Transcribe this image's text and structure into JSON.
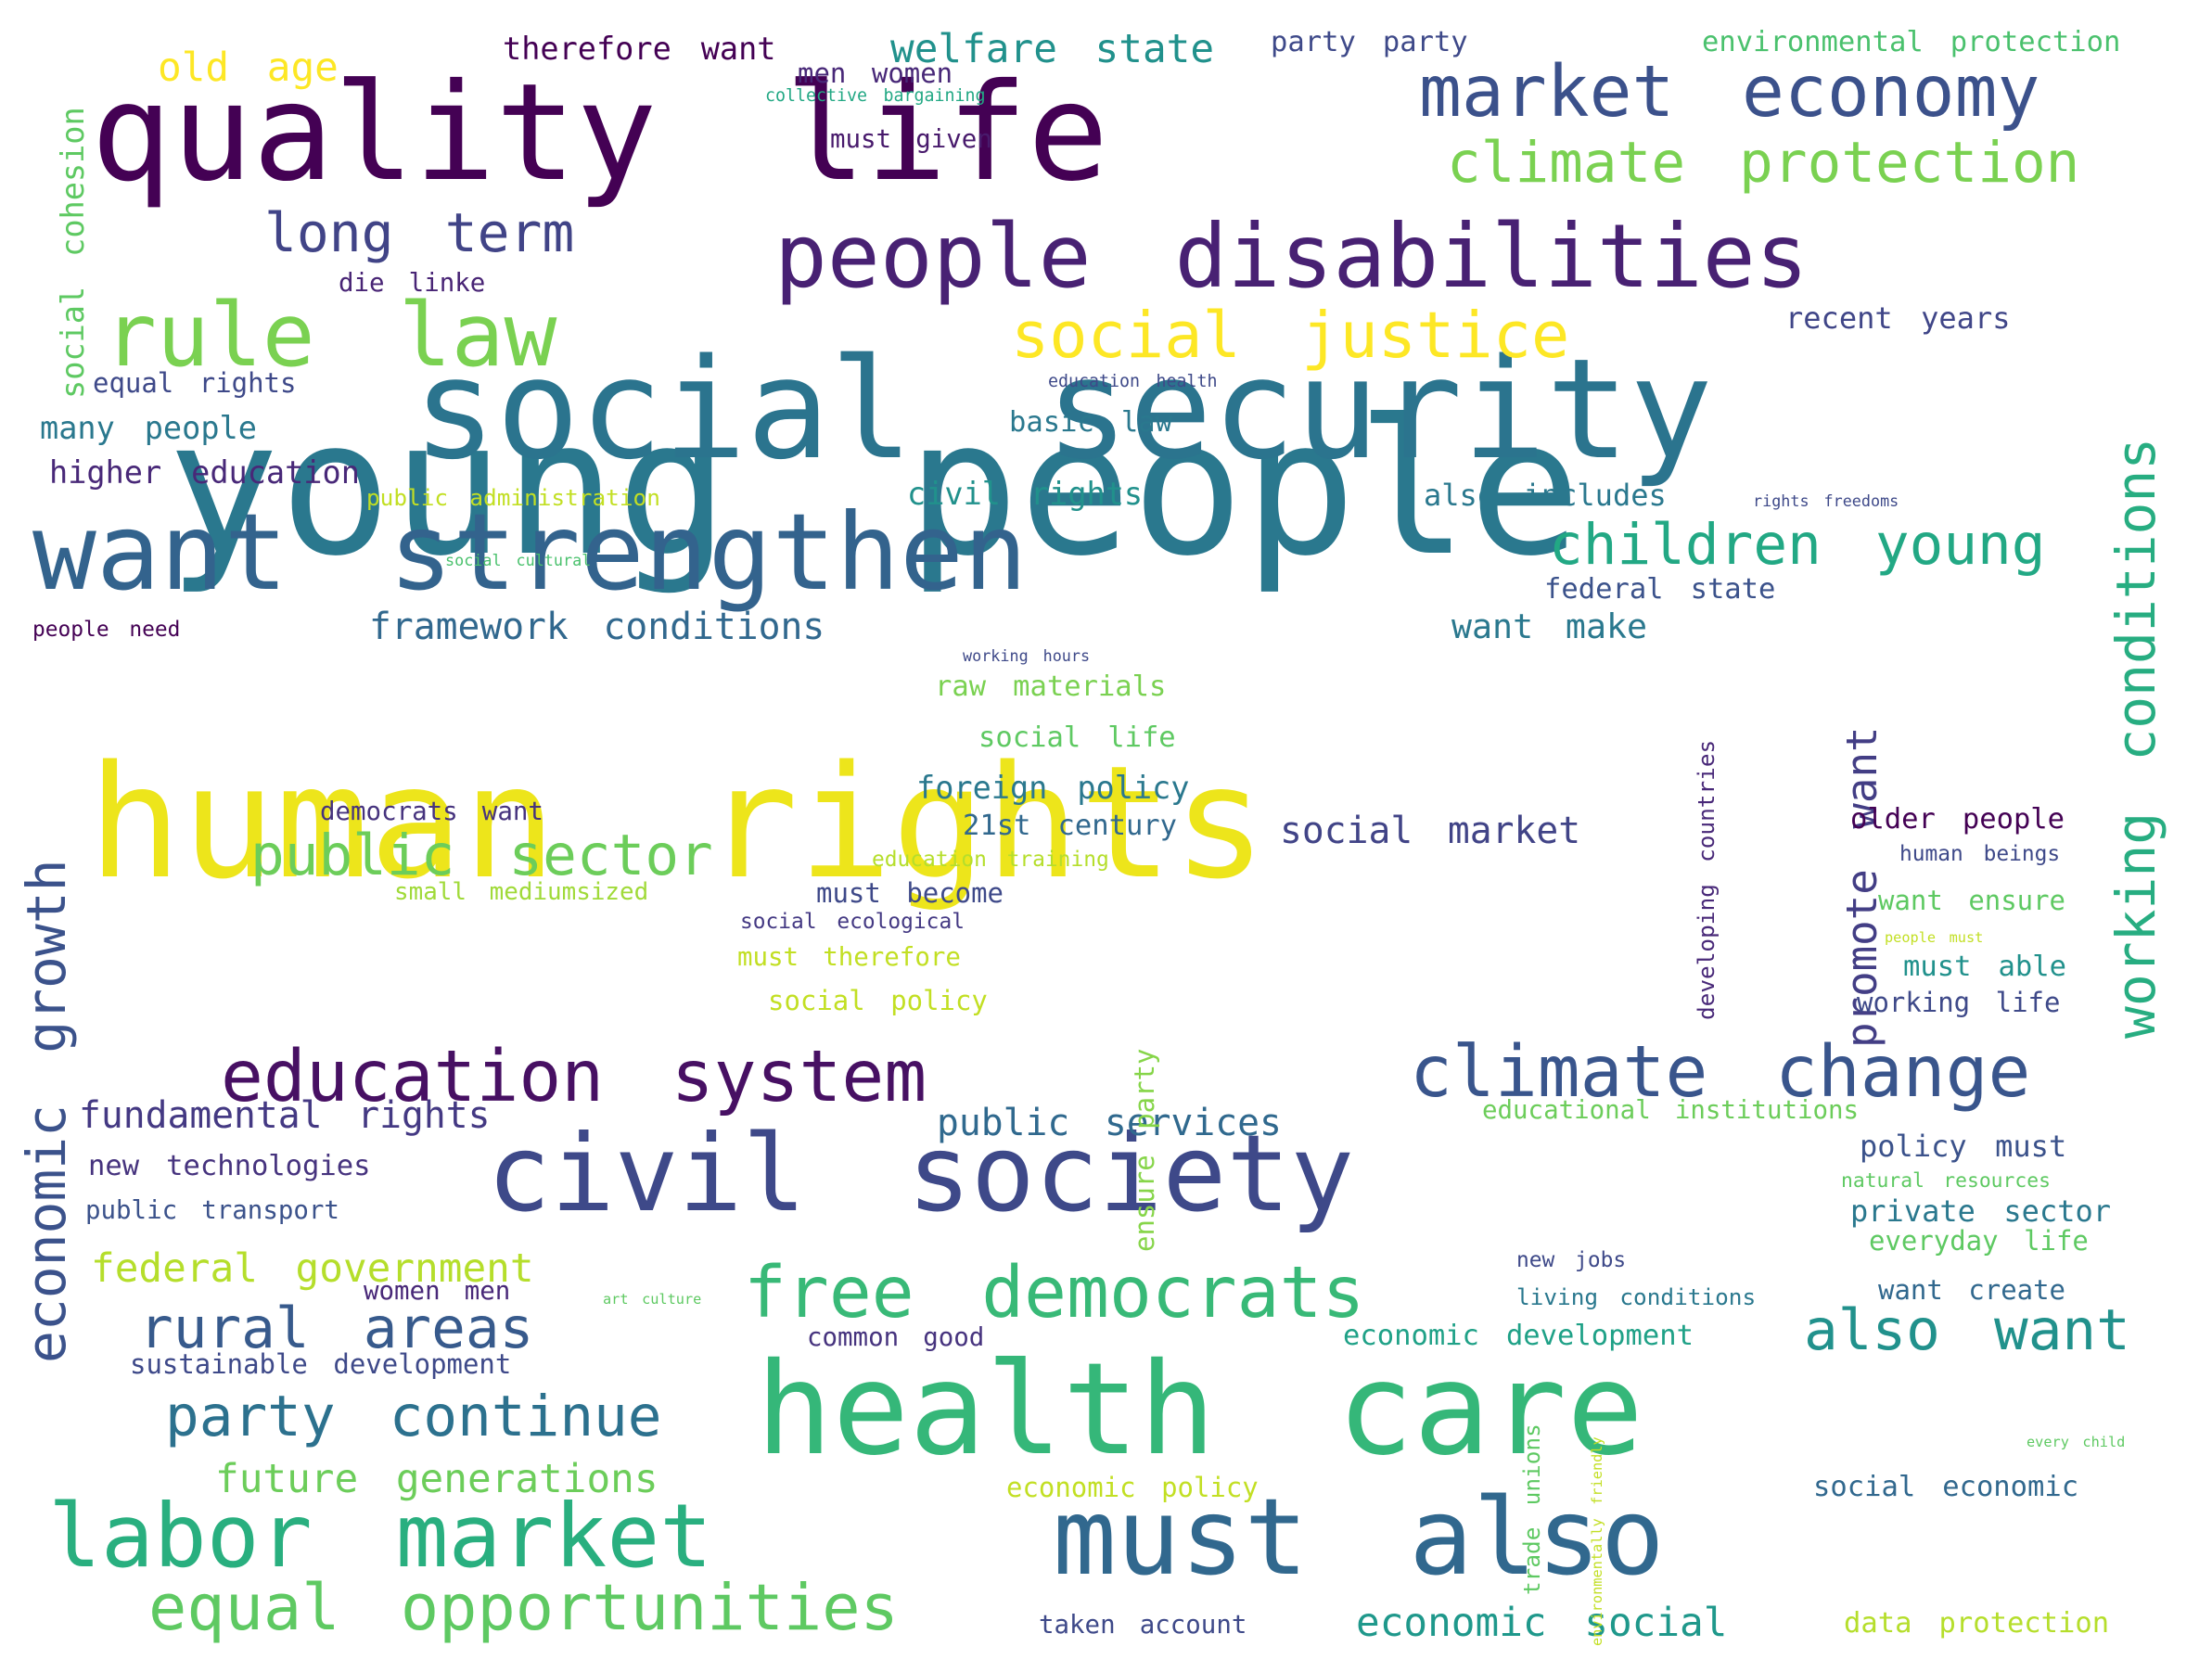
{
  "phrases": [
    {
      "text": "young people",
      "color": "#2a788e"
    },
    {
      "text": "human rights",
      "color": "#ede51b"
    },
    {
      "text": "social security",
      "color": "#2b748e"
    },
    {
      "text": "quality life",
      "color": "#440154"
    },
    {
      "text": "health care",
      "color": "#35b779"
    },
    {
      "text": "want strengthen",
      "color": "#33638d"
    },
    {
      "text": "civil society",
      "color": "#3e4989"
    },
    {
      "text": "must also",
      "color": "#31688e"
    },
    {
      "text": "people disabilities",
      "color": "#482173"
    },
    {
      "text": "labor market",
      "color": "#29af7f"
    },
    {
      "text": "rule law",
      "color": "#7ad151"
    },
    {
      "text": "market economy",
      "color": "#3b518b"
    },
    {
      "text": "free democrats",
      "color": "#38b977"
    },
    {
      "text": "climate change",
      "color": "#39558c"
    },
    {
      "text": "education system",
      "color": "#471063"
    },
    {
      "text": "equal opportunities",
      "color": "#5ec962"
    },
    {
      "text": "social justice",
      "color": "#fde725"
    },
    {
      "text": "climate protection",
      "color": "#7ad151"
    },
    {
      "text": "rural areas",
      "color": "#375a8c"
    },
    {
      "text": "children young",
      "color": "#22a884"
    },
    {
      "text": "party continue",
      "color": "#2c718e"
    },
    {
      "text": "public sector",
      "color": "#6ccd5a"
    },
    {
      "text": "long term",
      "color": "#414487"
    },
    {
      "text": "also want",
      "color": "#21918c"
    },
    {
      "text": "working conditions",
      "color": "#27ad81"
    },
    {
      "text": "economic growth",
      "color": "#3b528b"
    },
    {
      "text": "old age",
      "color": "#fde725"
    },
    {
      "text": "welfare state",
      "color": "#21918c"
    },
    {
      "text": "future generations",
      "color": "#6ccd5a"
    },
    {
      "text": "federal government",
      "color": "#b5de2b"
    },
    {
      "text": "economic social",
      "color": "#1f988b"
    },
    {
      "text": "promote want",
      "color": "#433e85"
    },
    {
      "text": "framework conditions",
      "color": "#31688e"
    },
    {
      "text": "fundamental rights",
      "color": "#443983"
    },
    {
      "text": "social market",
      "color": "#414487"
    },
    {
      "text": "public services",
      "color": "#30698e"
    },
    {
      "text": "social cohesion",
      "color": "#5ec962"
    },
    {
      "text": "therefore want",
      "color": "#440154"
    },
    {
      "text": "party party",
      "color": "#3e4989"
    },
    {
      "text": "environmental protection",
      "color": "#4ac16d"
    },
    {
      "text": "men women",
      "color": "#482878"
    },
    {
      "text": "collective bargaining",
      "color": "#22a884"
    },
    {
      "text": "must given",
      "color": "#481a6c"
    },
    {
      "text": "die linke",
      "color": "#482475"
    },
    {
      "text": "recent years",
      "color": "#404688"
    },
    {
      "text": "equal rights",
      "color": "#3e4989"
    },
    {
      "text": "education health",
      "color": "#3e4989"
    },
    {
      "text": "many people",
      "color": "#2a788e"
    },
    {
      "text": "basic law",
      "color": "#2a788e"
    },
    {
      "text": "higher education",
      "color": "#482878"
    },
    {
      "text": "public administration",
      "color": "#c2df23"
    },
    {
      "text": "civil rights",
      "color": "#21918c"
    },
    {
      "text": "also includes",
      "color": "#2a788e"
    },
    {
      "text": "rights freedoms",
      "color": "#3e4989"
    },
    {
      "text": "social cultural",
      "color": "#4ac16d"
    },
    {
      "text": "federal state",
      "color": "#3b528b"
    },
    {
      "text": "people need",
      "color": "#440154"
    },
    {
      "text": "want make",
      "color": "#2a788e"
    },
    {
      "text": "working hours",
      "color": "#3e4989"
    },
    {
      "text": "raw materials",
      "color": "#7ad151"
    },
    {
      "text": "social life",
      "color": "#5ec962"
    },
    {
      "text": "developing countries",
      "color": "#482878"
    },
    {
      "text": "foreign policy",
      "color": "#2a788e"
    },
    {
      "text": "democrats want",
      "color": "#46337e"
    },
    {
      "text": "21st century",
      "color": "#31688e"
    },
    {
      "text": "older people",
      "color": "#440154"
    },
    {
      "text": "education training",
      "color": "#b5de2b"
    },
    {
      "text": "human beings",
      "color": "#3e4989"
    },
    {
      "text": "small mediumsized",
      "color": "#a0da39"
    },
    {
      "text": "must become",
      "color": "#3e4989"
    },
    {
      "text": "want ensure",
      "color": "#5ec962"
    },
    {
      "text": "social ecological",
      "color": "#443983"
    },
    {
      "text": "people must",
      "color": "#c2df23"
    },
    {
      "text": "must therefore",
      "color": "#c2df23"
    },
    {
      "text": "must able",
      "color": "#21918c"
    },
    {
      "text": "ensure party",
      "color": "#86d549"
    },
    {
      "text": "working life",
      "color": "#3e4989"
    },
    {
      "text": "social policy",
      "color": "#c2df23"
    },
    {
      "text": "educational institutions",
      "color": "#6ccd5a"
    },
    {
      "text": "policy must",
      "color": "#3b528b"
    },
    {
      "text": "new technologies",
      "color": "#46337e"
    },
    {
      "text": "natural resources",
      "color": "#5ec962"
    },
    {
      "text": "public transport",
      "color": "#3b528b"
    },
    {
      "text": "private sector",
      "color": "#2a788e"
    },
    {
      "text": "everyday life",
      "color": "#5ec962"
    },
    {
      "text": "new jobs",
      "color": "#3e4989"
    },
    {
      "text": "women men",
      "color": "#482878"
    },
    {
      "text": "art culture",
      "color": "#5ec962"
    },
    {
      "text": "living conditions",
      "color": "#2a788e"
    },
    {
      "text": "want create",
      "color": "#31688e"
    },
    {
      "text": "common good",
      "color": "#46337e"
    },
    {
      "text": "economic development",
      "color": "#1fa187"
    },
    {
      "text": "sustainable development",
      "color": "#3e4989"
    },
    {
      "text": "trade unions",
      "color": "#5ec962"
    },
    {
      "text": "environmentally friendly",
      "color": "#c2df23"
    },
    {
      "text": "every child",
      "color": "#5ec962"
    },
    {
      "text": "economic policy",
      "color": "#c2df23"
    },
    {
      "text": "social economic",
      "color": "#31688e"
    },
    {
      "text": "taken account",
      "color": "#3e4989"
    },
    {
      "text": "data protection",
      "color": "#b5de2b"
    }
  ]
}
